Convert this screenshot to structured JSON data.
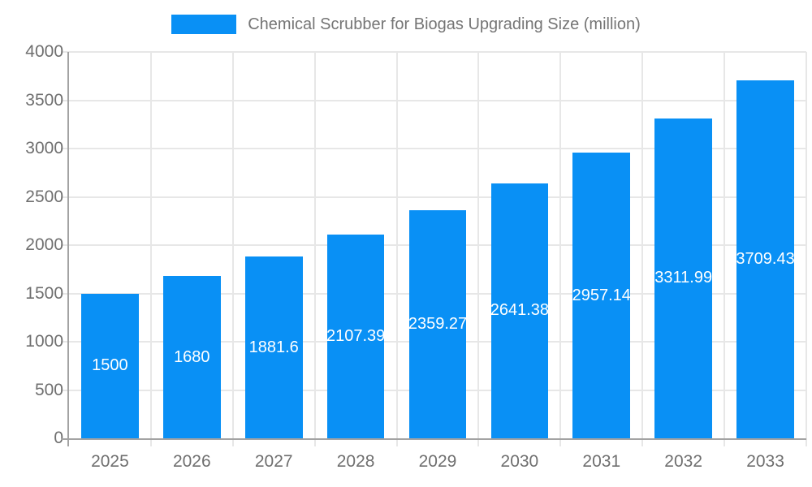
{
  "legend": {
    "label": "Chemical Scrubber for Biogas Upgrading Size (million)",
    "swatch_color": "#0990f5"
  },
  "chart_data": {
    "type": "bar",
    "title": "Chemical Scrubber for Biogas Upgrading Size (million)",
    "categories": [
      "2025",
      "2026",
      "2027",
      "2028",
      "2029",
      "2030",
      "2031",
      "2032",
      "2033"
    ],
    "values": [
      1500,
      1680,
      1881.6,
      2107.39,
      2359.27,
      2641.38,
      2957.14,
      3311.99,
      3709.43
    ],
    "value_labels": [
      "1500",
      "1680",
      "1881.6",
      "2107.39",
      "2359.27",
      "2641.38",
      "2957.14",
      "3311.99",
      "3709.43"
    ],
    "xlabel": "",
    "ylabel": "",
    "ylim": [
      0,
      4000
    ],
    "ytick_step": 500,
    "grid": true,
    "legend_position": "top",
    "bar_color": "#0990f5",
    "bar_width_fraction": 0.7,
    "value_label_color": "#ffffff",
    "grid_color": "#e7e7e7",
    "axis_color": "#a3a3a3",
    "tick_text_color": "#6f6f6f"
  }
}
